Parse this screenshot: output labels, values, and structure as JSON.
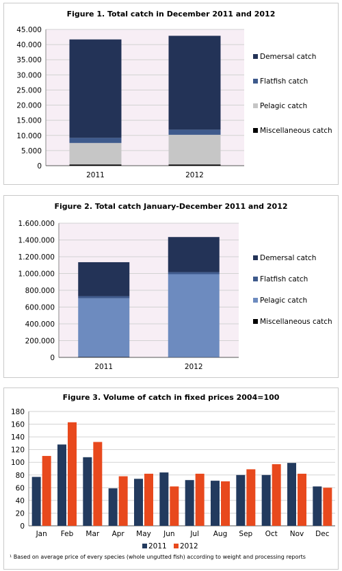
{
  "colors": {
    "demersal": "#233357",
    "flatfish": "#3e5a8c",
    "pelagic1": "#c6c6c6",
    "pelagic2": "#6d8bbf",
    "misc": "#000000",
    "c2011": "#223a5e",
    "c2012": "#e8491d",
    "plot_bg": "#f7eef5"
  },
  "figure1": {
    "title": "Figure 1. Total catch in December 2011 and 2012"
  },
  "figure2": {
    "title": "Figure 2. Total catch January-December 2011 and 2012"
  },
  "figure3": {
    "title": "Figure 3. Volume of catch in fixed prices  2004=100",
    "footnote": "¹ Based on average price of every species (whole ungutted fish) according to weight and processing reports"
  },
  "chart_data": [
    {
      "type": "bar",
      "stacked": true,
      "title": "Figure 1. Total catch in December 2011 and 2012",
      "categories": [
        "2011",
        "2012"
      ],
      "ylim": [
        0,
        45000
      ],
      "yticks": [
        0,
        5000,
        10000,
        15000,
        20000,
        25000,
        30000,
        35000,
        40000,
        45000
      ],
      "ytick_labels": [
        "0",
        "5.000",
        "10.000",
        "15.000",
        "20.000",
        "25.000",
        "30.000",
        "35.000",
        "40.000",
        "45.000"
      ],
      "legend_position": "right",
      "series": [
        {
          "name": "Miscellaneous catch",
          "values": [
            400,
            400
          ]
        },
        {
          "name": "Pelagic catch",
          "values": [
            7100,
            9800
          ]
        },
        {
          "name": "Flatfish catch",
          "values": [
            1700,
            1700
          ]
        },
        {
          "name": "Demersal catch",
          "values": [
            32500,
            31000
          ]
        }
      ],
      "legend": [
        "Demersal catch",
        "Flatfish catch",
        "Pelagic catch",
        "Miscellaneous catch"
      ]
    },
    {
      "type": "bar",
      "stacked": true,
      "title": "Figure 2. Total catch January-December 2011 and 2012",
      "categories": [
        "2011",
        "2012"
      ],
      "ylim": [
        0,
        1600000
      ],
      "yticks": [
        0,
        200000,
        400000,
        600000,
        800000,
        1000000,
        1200000,
        1400000,
        1600000
      ],
      "ytick_labels": [
        "0",
        "200.000",
        "400.000",
        "600.000",
        "800.000",
        "1.000.000",
        "1.200.000",
        "1.400.000",
        "1.600.000"
      ],
      "legend_position": "right",
      "series": [
        {
          "name": "Miscellaneous catch",
          "values": [
            5000,
            2000
          ]
        },
        {
          "name": "Pelagic catch",
          "values": [
            700000,
            990000
          ]
        },
        {
          "name": "Flatfish catch",
          "values": [
            25000,
            25000
          ]
        },
        {
          "name": "Demersal catch",
          "values": [
            405000,
            418000
          ]
        }
      ],
      "legend": [
        "Demersal catch",
        "Flatfish catch",
        "Pelagic catch",
        "Miscellaneous catch"
      ]
    },
    {
      "type": "bar",
      "title": "Figure 3. Volume of catch in fixed prices  2004=100",
      "categories": [
        "Jan",
        "Feb",
        "Mar",
        "Apr",
        "May",
        "Jun",
        "Jul",
        "Aug",
        "Sep",
        "Oct",
        "Nov",
        "Dec"
      ],
      "ylim": [
        0,
        180
      ],
      "yticks": [
        0,
        20,
        40,
        60,
        80,
        100,
        120,
        140,
        160,
        180
      ],
      "legend_position": "bottom",
      "series": [
        {
          "name": "2011",
          "values": [
            77,
            128,
            108,
            59,
            74,
            84,
            72,
            71,
            80,
            80,
            99,
            62
          ]
        },
        {
          "name": "2012",
          "values": [
            110,
            163,
            132,
            78,
            82,
            62,
            82,
            70,
            89,
            97,
            82,
            60
          ]
        }
      ]
    }
  ]
}
